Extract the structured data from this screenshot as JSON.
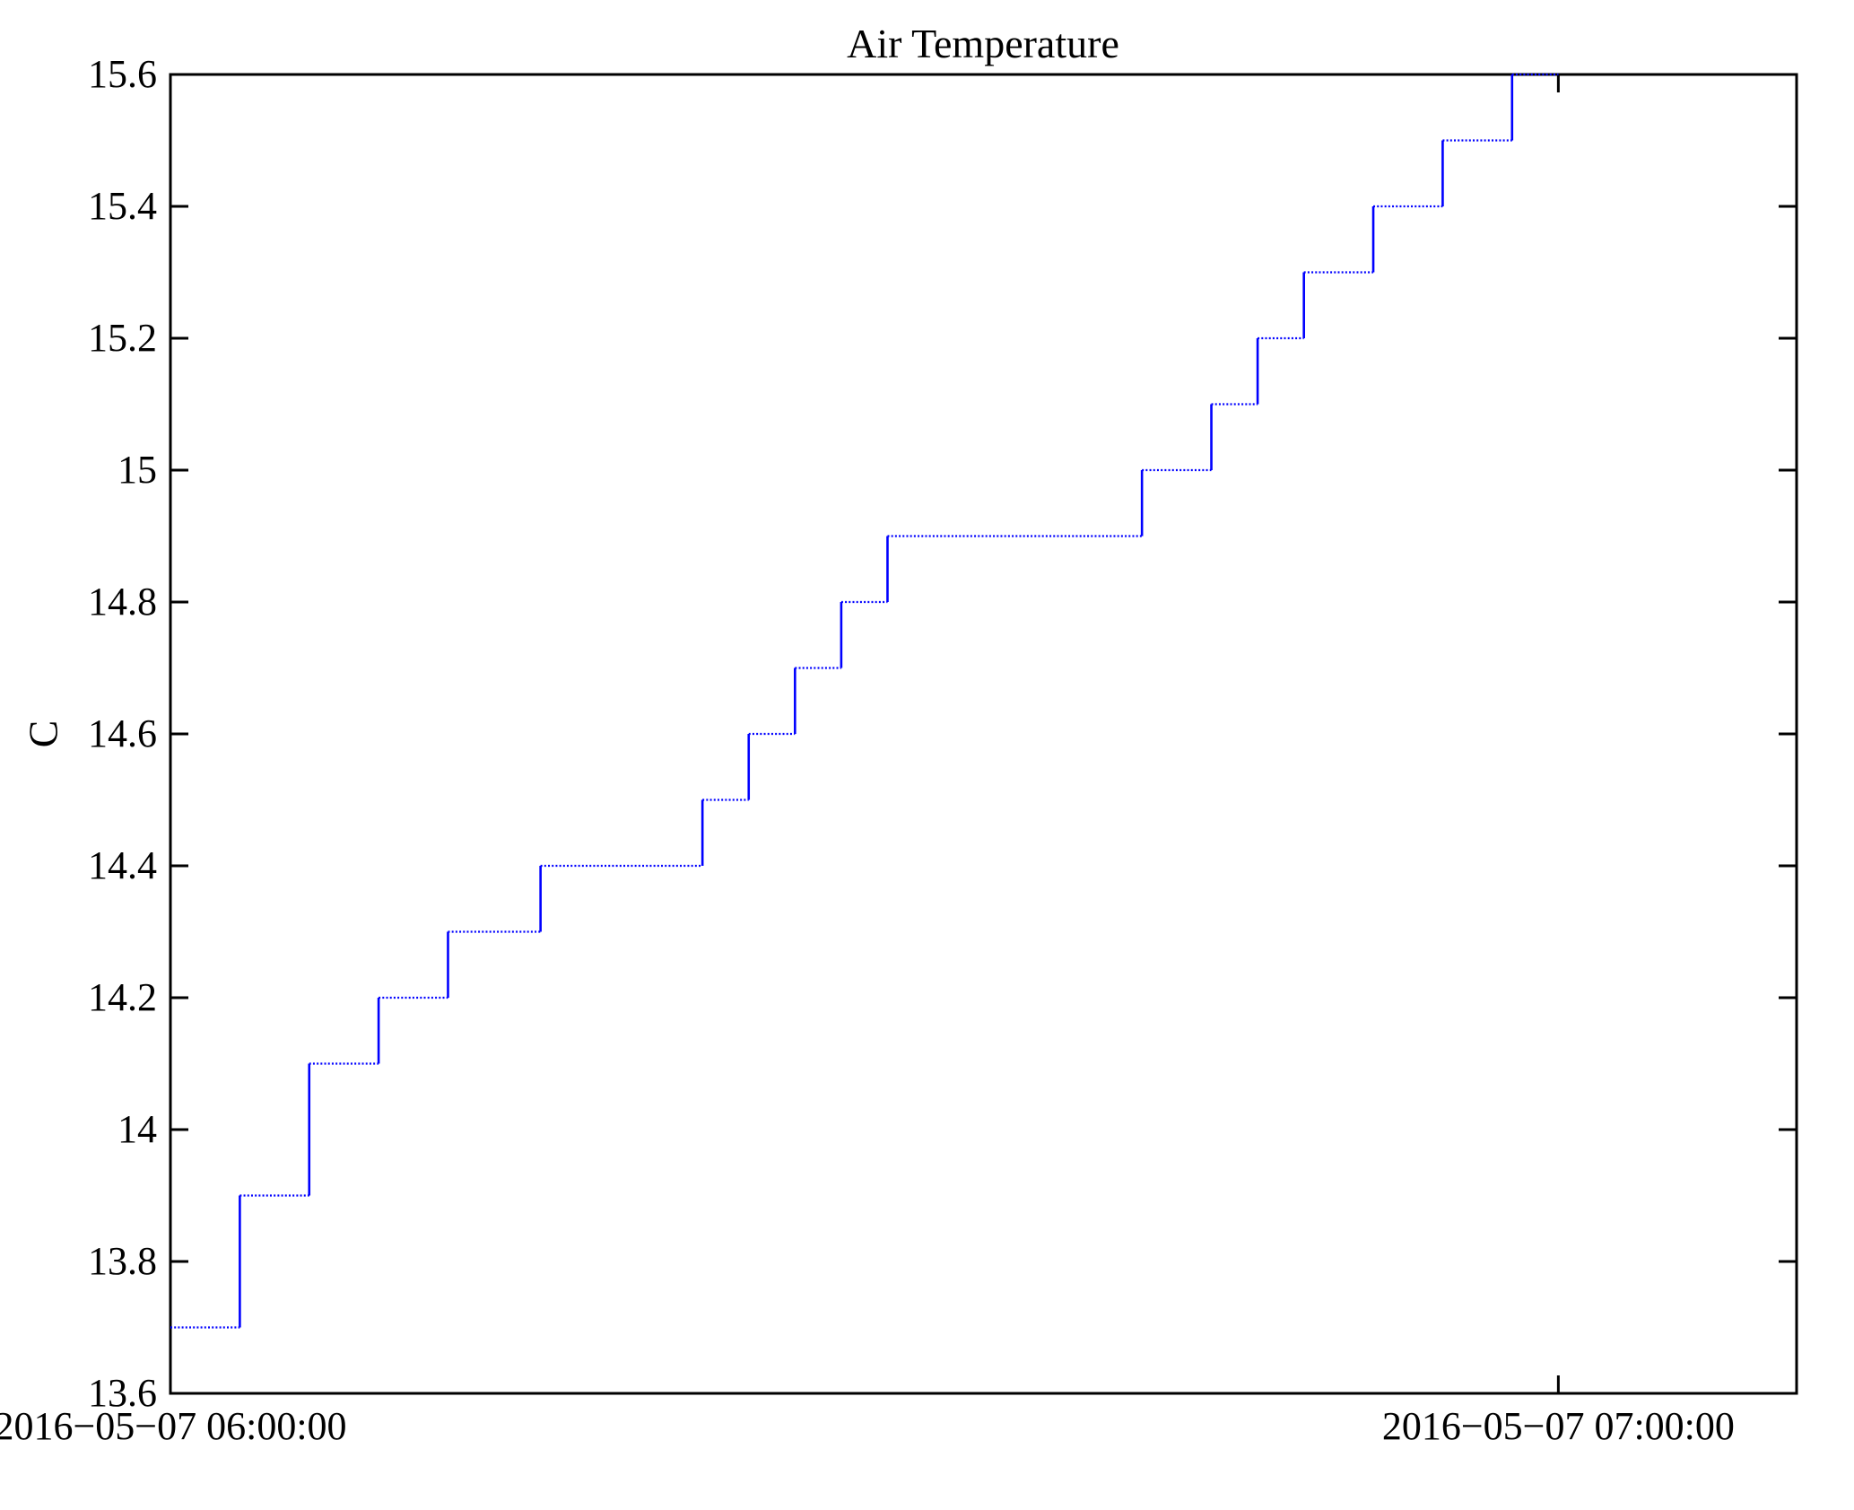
{
  "figure": {
    "title": "Air Temperature",
    "ylabel": "C",
    "background_color": "#ffffff",
    "axis_color": "#000000"
  },
  "chart_data": {
    "type": "line",
    "subtype": "step-post",
    "title": "Air Temperature",
    "xlabel": "",
    "ylabel": "C",
    "grid": false,
    "legend": "none",
    "line_color": "#0000FF",
    "line_style": "dotted horizontal runs with solid vertical risers",
    "ylim": [
      13.6,
      15.6
    ],
    "xlim_minutes_after_start": [
      0,
      70.3
    ],
    "y_ticks": [
      13.6,
      13.8,
      14,
      14.2,
      14.4,
      14.6,
      14.8,
      15,
      15.2,
      15.4,
      15.6
    ],
    "y_tick_labels": [
      "13.6",
      "13.8",
      "14",
      "14.2",
      "14.4",
      "14.6",
      "14.8",
      "15",
      "15.2",
      "15.4",
      "15.6"
    ],
    "x_ticks": [
      {
        "minutes": 0,
        "label": "2016−05−07 06:00:00"
      },
      {
        "minutes": 60,
        "label": "2016−05−07 07:00:00"
      }
    ],
    "series_name": "Air Temperature (C)",
    "points": [
      {
        "time": "06:00",
        "minutes": 0,
        "c": 13.7
      },
      {
        "time": "06:03",
        "minutes": 3,
        "c": 13.9
      },
      {
        "time": "06:06",
        "minutes": 6,
        "c": 14.1
      },
      {
        "time": "06:09",
        "minutes": 9,
        "c": 14.2
      },
      {
        "time": "06:12",
        "minutes": 12,
        "c": 14.3
      },
      {
        "time": "06:16",
        "minutes": 16,
        "c": 14.4
      },
      {
        "time": "06:23",
        "minutes": 23,
        "c": 14.5
      },
      {
        "time": "06:25",
        "minutes": 25,
        "c": 14.6
      },
      {
        "time": "06:27",
        "minutes": 27,
        "c": 14.7
      },
      {
        "time": "06:29",
        "minutes": 29,
        "c": 14.8
      },
      {
        "time": "06:31",
        "minutes": 31,
        "c": 14.9
      },
      {
        "time": "06:42",
        "minutes": 42,
        "c": 15.0
      },
      {
        "time": "06:45",
        "minutes": 45,
        "c": 15.1
      },
      {
        "time": "06:47",
        "minutes": 47,
        "c": 15.2
      },
      {
        "time": "06:49",
        "minutes": 49,
        "c": 15.3
      },
      {
        "time": "06:52",
        "minutes": 52,
        "c": 15.4
      },
      {
        "time": "06:55",
        "minutes": 55,
        "c": 15.5
      },
      {
        "time": "06:58",
        "minutes": 58,
        "c": 15.6
      }
    ],
    "series_end": {
      "time": "07:00",
      "minutes": 60,
      "c": 15.6
    }
  }
}
